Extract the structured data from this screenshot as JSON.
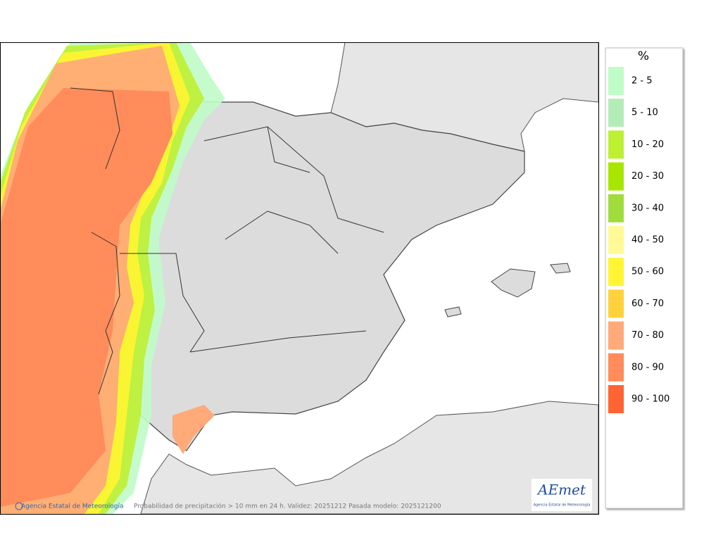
{
  "legend": {
    "title": "%",
    "items": [
      {
        "label": "2 - 5",
        "color": "#c0fcc8"
      },
      {
        "label": "5 - 10",
        "color": "#b4ecb8"
      },
      {
        "label": "10 - 20",
        "color": "#bef032"
      },
      {
        "label": "20 - 30",
        "color": "#a8e600"
      },
      {
        "label": "30 - 40",
        "color": "#a0dc3c"
      },
      {
        "label": "40 - 50",
        "color": "#fffa96"
      },
      {
        "label": "50 - 60",
        "color": "#fff532"
      },
      {
        "label": "60 - 70",
        "color": "#ffd23c"
      },
      {
        "label": "70 - 80",
        "color": "#ffaa78"
      },
      {
        "label": "80 - 90",
        "color": "#ff8c5a"
      },
      {
        "label": "90 - 100",
        "color": "#ff6432"
      }
    ]
  },
  "footer": {
    "copyright": "Agencia Estatal de Meteorología",
    "caption": "Probabilidad de precipitación > 10 mm en 24 h. Validez: 20251212 Pasada modelo: 2025121200"
  },
  "logo": {
    "text": "AEmet",
    "subtitle": "Agencia Estatal de Meteorología"
  }
}
